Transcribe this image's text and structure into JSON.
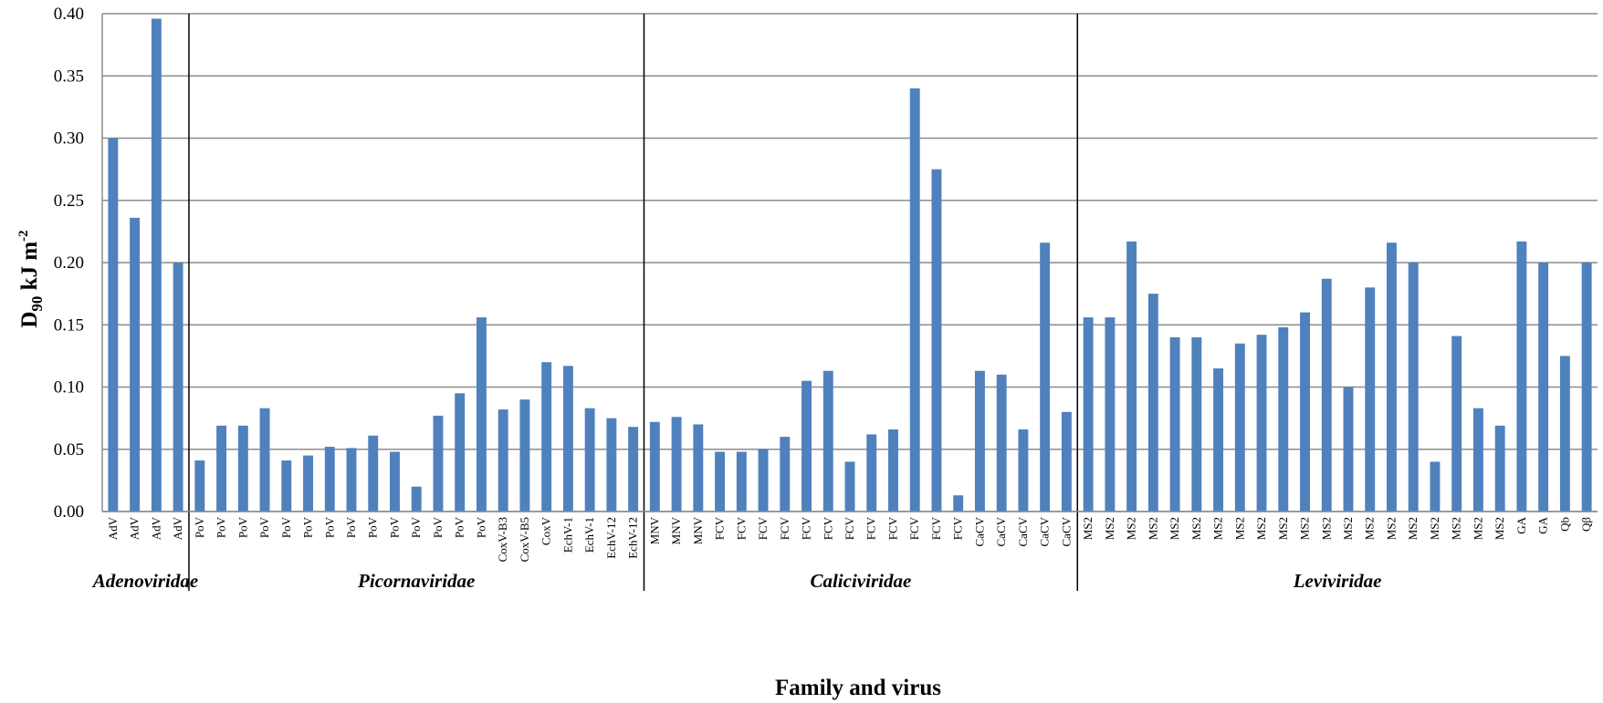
{
  "chart_data": {
    "type": "bar",
    "xlabel": "Family and virus",
    "ylabel": {
      "main": "D",
      "sub": "90",
      "unit": " kJ m",
      "sup": "-2"
    },
    "ylim": [
      0,
      0.4
    ],
    "yticks": [
      "0.00",
      "0.05",
      "0.10",
      "0.15",
      "0.20",
      "0.25",
      "0.30",
      "0.35",
      "0.40"
    ],
    "grid": true,
    "bar_color": "#4f81bd",
    "categories": [
      "AdV",
      "AdV",
      "AdV",
      "AdV",
      "PoV",
      "PoV",
      "PoV",
      "PoV",
      "PoV",
      "PoV",
      "PoV",
      "PoV",
      "PoV",
      "PoV",
      "PoV",
      "PoV",
      "PoV",
      "PoV",
      "CoxV-B3",
      "CoxV-B5",
      "CoxV",
      "EchV-1",
      "EchV-1",
      "EchV-12",
      "EchV-12",
      "MNV",
      "MNV",
      "MNV",
      "FCV",
      "FCV",
      "FCV",
      "FCV",
      "FCV",
      "FCV",
      "FCV",
      "FCV",
      "FCV",
      "FCV",
      "FCV",
      "FCV",
      "CaCV",
      "CaCV",
      "CaCV",
      "CaCV",
      "CaCV",
      "MS2",
      "MS2",
      "MS2",
      "MS2",
      "MS2",
      "MS2",
      "MS2",
      "MS2",
      "MS2",
      "MS2",
      "MS2",
      "MS2",
      "MS2",
      "MS2",
      "MS2",
      "MS2",
      "MS2",
      "MS2",
      "MS2",
      "MS2",
      "GA",
      "GA",
      "Qb",
      "Qβ"
    ],
    "values": [
      0.3,
      0.236,
      0.396,
      0.2,
      0.041,
      0.069,
      0.069,
      0.083,
      0.041,
      0.045,
      0.052,
      0.051,
      0.061,
      0.048,
      0.02,
      0.077,
      0.095,
      0.156,
      0.082,
      0.09,
      0.12,
      0.117,
      0.083,
      0.075,
      0.068,
      0.072,
      0.076,
      0.07,
      0.048,
      0.048,
      0.05,
      0.06,
      0.105,
      0.113,
      0.04,
      0.062,
      0.066,
      0.34,
      0.275,
      0.013,
      0.113,
      0.11,
      0.066,
      0.216,
      0.08,
      0.156,
      0.156,
      0.217,
      0.175,
      0.14,
      0.14,
      0.115,
      0.135,
      0.142,
      0.148,
      0.16,
      0.187,
      0.1,
      0.18,
      0.216,
      0.2,
      0.04,
      0.141,
      0.083,
      0.069,
      0.217,
      0.2,
      0.125,
      0.2
    ],
    "groups": [
      {
        "name": "Adenoviridae",
        "count": 4
      },
      {
        "name": "Picornaviridae",
        "count": 21
      },
      {
        "name": "Caliciviridae",
        "count": 20
      },
      {
        "name": "Leviviridae",
        "count": 24
      }
    ]
  }
}
